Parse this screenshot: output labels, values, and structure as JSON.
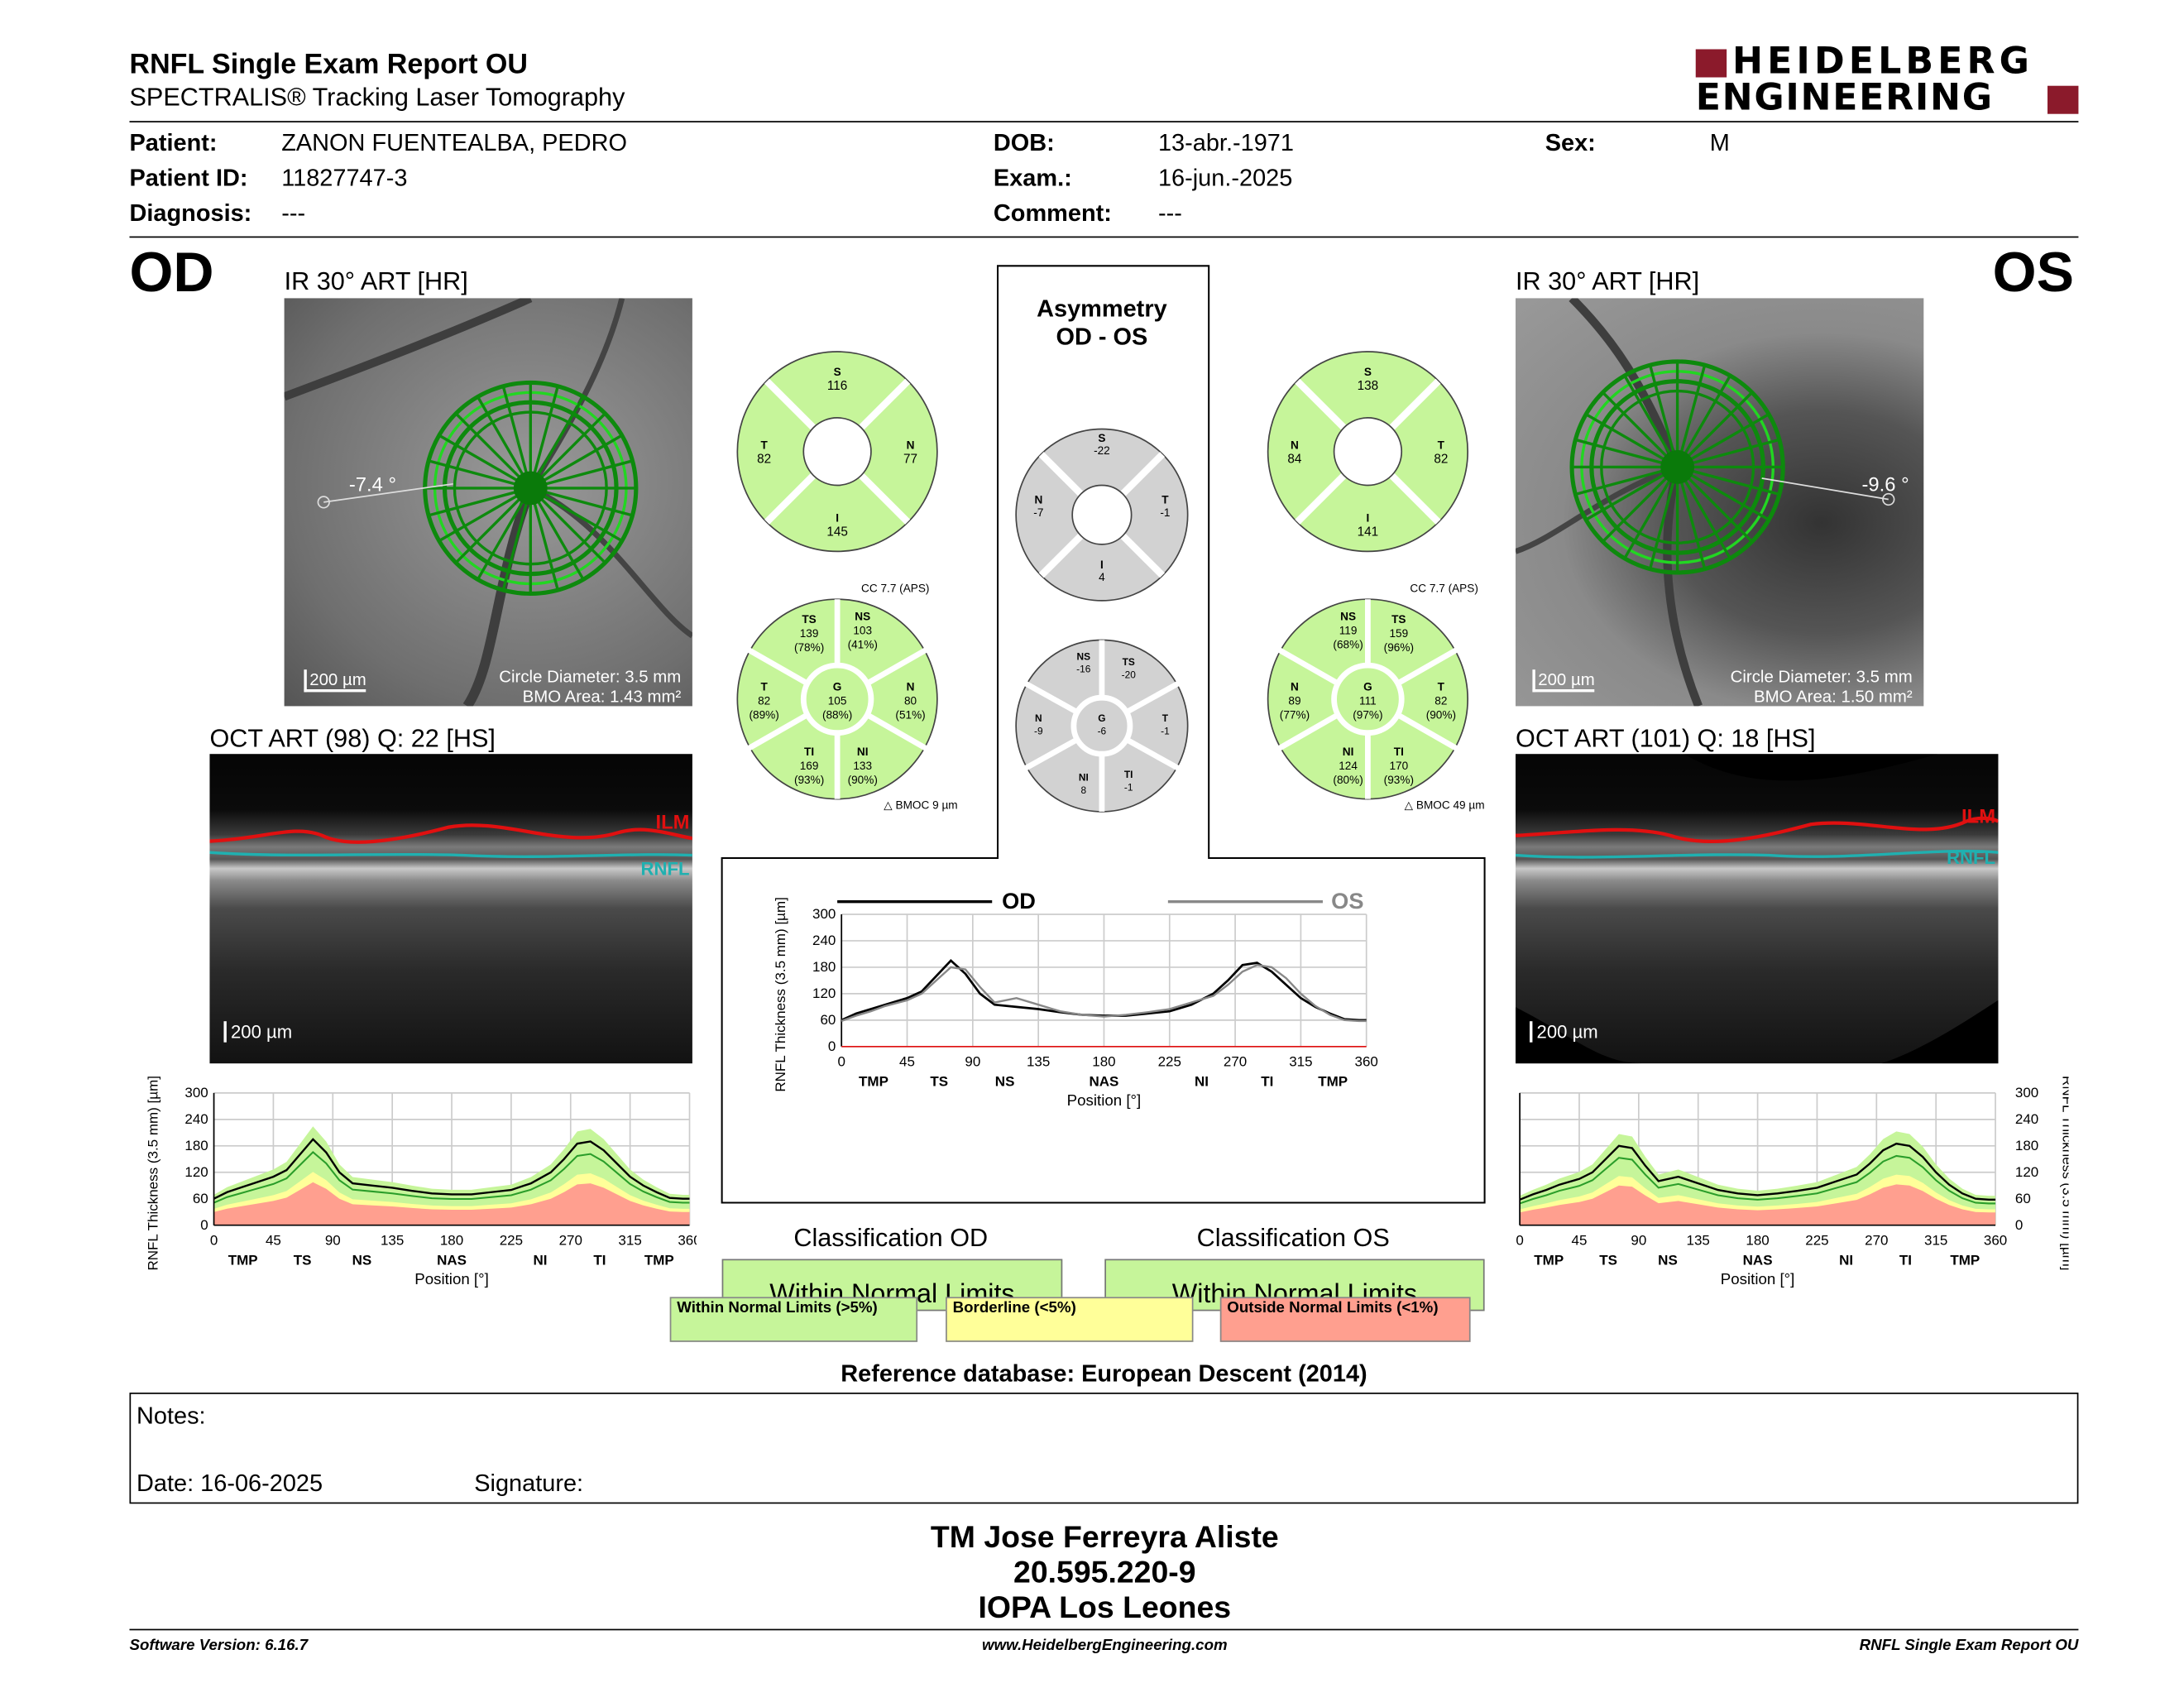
{
  "header": {
    "title": "RNFL Single Exam Report OU",
    "subtitle": "SPECTRALIS® Tracking Laser Tomography",
    "logo_line1": "HEIDELBERG",
    "logo_line2": "ENGINEERING",
    "brand_color": "#8b1a2b"
  },
  "patient": {
    "patient_label": "Patient:",
    "patient_value": "ZANON FUENTEALBA, PEDRO",
    "id_label": "Patient ID:",
    "id_value": "11827747-3",
    "diagnosis_label": "Diagnosis:",
    "diagnosis_value": "---",
    "dob_label": "DOB:",
    "dob_value": "13-abr.-1971",
    "exam_label": "Exam.:",
    "exam_value": "16-jun.-2025",
    "comment_label": "Comment:",
    "comment_value": "---",
    "sex_label": "Sex:",
    "sex_value": "M"
  },
  "od": {
    "eye": "OD",
    "ir_title": "IR 30° ART [HR]",
    "angle": "-7.4 °",
    "scale": "200 µm",
    "circle_diameter": "Circle Diameter: 3.5 mm",
    "bmo_area": "BMO Area: 1.43 mm²",
    "oct_title": "OCT ART (98) Q: 22 [HS]",
    "oct_scale": "200 µm",
    "ilm": "ILM",
    "rnfl": "RNFL",
    "quad": {
      "S": "116",
      "T": "82",
      "N": "77",
      "I": "145"
    },
    "sectors": {
      "TS": [
        "139",
        "(78%)"
      ],
      "NS": [
        "103",
        "(41%)"
      ],
      "T": [
        "82",
        "(89%)"
      ],
      "G": [
        "105",
        "(88%)"
      ],
      "N": [
        "80",
        "(51%)"
      ],
      "TI": [
        "169",
        "(93%)"
      ],
      "NI": [
        "133",
        "(90%)"
      ]
    },
    "cc": "CC 7.7 (APS)",
    "bmoc": "BMOC 9 µm"
  },
  "os": {
    "eye": "OS",
    "ir_title": "IR 30° ART [HR]",
    "angle": "-9.6 °",
    "scale": "200 µm",
    "circle_diameter": "Circle Diameter: 3.5 mm",
    "bmo_area": "BMO Area: 1.50 mm²",
    "oct_title": "OCT ART (101) Q: 18 [HS]",
    "oct_scale": "200 µm",
    "ilm": "ILM",
    "rnfl": "RNFL",
    "quad": {
      "S": "138",
      "N": "84",
      "T": "82",
      "I": "141"
    },
    "sectors": {
      "NS": [
        "119",
        "(68%)"
      ],
      "TS": [
        "159",
        "(96%)"
      ],
      "N": [
        "89",
        "(77%)"
      ],
      "G": [
        "111",
        "(97%)"
      ],
      "T": [
        "82",
        "(90%)"
      ],
      "NI": [
        "124",
        "(80%)"
      ],
      "TI": [
        "170",
        "(93%)"
      ]
    },
    "cc": "CC 7.7 (APS)",
    "bmoc": "BMOC 49 µm"
  },
  "asymmetry": {
    "title1": "Asymmetry",
    "title2": "OD - OS",
    "quad": {
      "S": "-22",
      "N": "-7",
      "T": "-1",
      "I": "4"
    },
    "sectors": {
      "NS": "-16",
      "TS": "-20",
      "N": "-9",
      "G": "-6",
      "T": "-1",
      "NI": "8",
      "TI": "-1"
    }
  },
  "chart_data": [
    {
      "type": "line",
      "title": "",
      "xlabel": "Position [°]",
      "ylabel": "RNFL Thickness (3.5 mm) [µm]",
      "xlim": [
        0,
        360
      ],
      "ylim": [
        0,
        300
      ],
      "xticks": [
        "0",
        "45",
        "90",
        "135",
        "180",
        "225",
        "270",
        "315",
        "360"
      ],
      "yticks": [
        "0",
        "60",
        "120",
        "180",
        "240",
        "300"
      ],
      "sector_labels": [
        "TMP",
        "TS",
        "NS",
        "NAS",
        "NI",
        "TI",
        "TMP"
      ],
      "series": [
        {
          "name": "OD",
          "x": [
            0,
            10,
            20,
            30,
            45,
            55,
            65,
            75,
            85,
            95,
            105,
            120,
            135,
            150,
            165,
            180,
            195,
            210,
            225,
            240,
            255,
            265,
            275,
            285,
            295,
            305,
            315,
            325,
            335,
            345,
            355,
            360
          ],
          "values": [
            60,
            75,
            85,
            95,
            110,
            125,
            160,
            195,
            165,
            120,
            95,
            90,
            85,
            78,
            72,
            70,
            70,
            75,
            80,
            95,
            120,
            150,
            185,
            190,
            170,
            140,
            110,
            90,
            75,
            62,
            60,
            60
          ]
        },
        {
          "name": "OS",
          "x": [
            0,
            10,
            20,
            30,
            45,
            55,
            65,
            75,
            85,
            95,
            105,
            120,
            135,
            150,
            165,
            180,
            195,
            210,
            225,
            240,
            255,
            265,
            275,
            285,
            295,
            305,
            315,
            325,
            335,
            345,
            355,
            360
          ],
          "values": [
            58,
            70,
            80,
            92,
            105,
            120,
            150,
            180,
            175,
            135,
            100,
            110,
            95,
            80,
            72,
            68,
            72,
            78,
            85,
            100,
            115,
            140,
            170,
            185,
            180,
            155,
            120,
            92,
            72,
            60,
            58,
            58
          ]
        }
      ],
      "legend": "top"
    },
    {
      "type": "line",
      "xlabel": "Position [°]",
      "ylabel": "RNFL Thickness (3.5 mm) [µm]",
      "xlim": [
        0,
        360
      ],
      "ylim": [
        0,
        300
      ],
      "xticks": [
        "0",
        "45",
        "90",
        "135",
        "180",
        "225",
        "270",
        "315",
        "360"
      ],
      "yticks": [
        "0",
        "60",
        "120",
        "180",
        "240",
        "300"
      ],
      "sector_labels": [
        "TMP",
        "TS",
        "NS",
        "NAS",
        "NI",
        "TI",
        "TMP"
      ],
      "series": [
        {
          "name": "",
          "x": [
            0,
            10,
            20,
            30,
            45,
            55,
            65,
            75,
            85,
            95,
            105,
            120,
            135,
            150,
            165,
            180,
            195,
            210,
            225,
            240,
            255,
            265,
            275,
            285,
            295,
            305,
            315,
            325,
            335,
            345,
            355,
            360
          ],
          "values": [
            60,
            75,
            85,
            95,
            110,
            125,
            160,
            195,
            165,
            120,
            95,
            90,
            85,
            78,
            72,
            70,
            70,
            75,
            80,
            95,
            120,
            150,
            185,
            190,
            170,
            140,
            110,
            90,
            75,
            62,
            60,
            60
          ]
        }
      ]
    },
    {
      "type": "line",
      "xlabel": "Position [°]",
      "ylabel": "RNFL Thickness (3.5 mm) [µm]",
      "xlim": [
        0,
        360
      ],
      "ylim": [
        0,
        300
      ],
      "xticks": [
        "0",
        "45",
        "90",
        "135",
        "180",
        "225",
        "270",
        "315",
        "360"
      ],
      "yticks": [
        "0",
        "60",
        "120",
        "180",
        "240",
        "300"
      ],
      "sector_labels": [
        "TMP",
        "TS",
        "NS",
        "NAS",
        "NI",
        "TI",
        "TMP"
      ],
      "series": [
        {
          "name": "",
          "x": [
            0,
            10,
            20,
            30,
            45,
            55,
            65,
            75,
            85,
            95,
            105,
            120,
            135,
            150,
            165,
            180,
            195,
            210,
            225,
            240,
            255,
            265,
            275,
            285,
            295,
            305,
            315,
            325,
            335,
            345,
            355,
            360
          ],
          "values": [
            58,
            70,
            80,
            92,
            105,
            120,
            150,
            180,
            175,
            135,
            100,
            110,
            95,
            80,
            72,
            68,
            72,
            78,
            85,
            100,
            115,
            140,
            170,
            185,
            180,
            155,
            120,
            92,
            72,
            60,
            58,
            58
          ]
        }
      ]
    }
  ],
  "charts": {
    "od_label": "OD",
    "os_label": "OS",
    "xlabel": "Position [°]",
    "ylabel": "RNFL Thickness (3.5 mm) [µm]"
  },
  "classification": {
    "od_title": "Classification OD",
    "od_result": "Within Normal Limits",
    "os_title": "Classification OS",
    "os_result": "Within Normal Limits",
    "legend_normal": "Within Normal Limits (>5%)",
    "legend_borderline": "Borderline (<5%)",
    "legend_outside": "Outside Normal Limits (<1%)",
    "color_normal": "#c6f59a",
    "color_borderline": "#ffff99",
    "color_outside": "#ff9f8f"
  },
  "reference": "Reference database: European Descent (2014)",
  "notes": {
    "notes_label": "Notes:",
    "date_label": "Date: 16-06-2025",
    "signature_label": "Signature:"
  },
  "signer": {
    "name": "TM Jose Ferreyra Aliste",
    "id": "20.595.220-9",
    "place": "IOPA Los Leones"
  },
  "footer": {
    "software": "Software Version: 6.16.7",
    "url": "www.HeidelbergEngineering.com",
    "report": "RNFL Single Exam Report OU"
  }
}
